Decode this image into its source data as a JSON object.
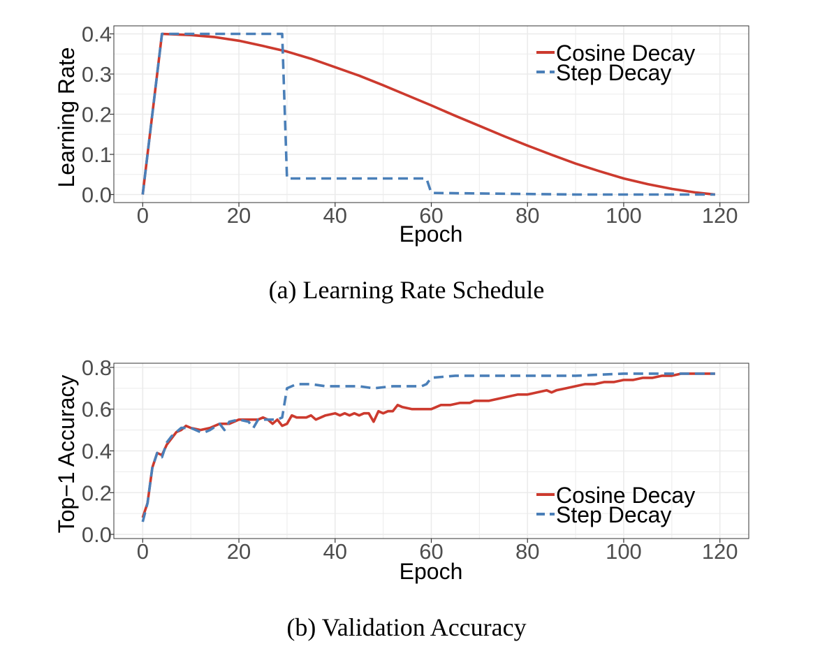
{
  "colors": {
    "cosine": "#cc3a2e",
    "step": "#4a7fb8",
    "grid": "#ebebeb",
    "panel_border": "#333333"
  },
  "chart_data": [
    {
      "id": "lr",
      "type": "line",
      "caption": "(a) Learning Rate Schedule",
      "xlabel": "Epoch",
      "ylabel": "Learning Rate",
      "xlim": [
        -6,
        126
      ],
      "ylim": [
        -0.02,
        0.42
      ],
      "xticks": [
        0,
        20,
        40,
        60,
        80,
        100,
        120
      ],
      "yticks": [
        0.0,
        0.1,
        0.2,
        0.3,
        0.4
      ],
      "ytick_labels": [
        "0.0",
        "0.1",
        "0.2",
        "0.3",
        "0.4"
      ],
      "legend_position": "top-right",
      "series": [
        {
          "name": "Cosine Decay",
          "style": "solid",
          "x": [
            0,
            4,
            10,
            15,
            20,
            25,
            30,
            35,
            40,
            45,
            50,
            55,
            60,
            65,
            70,
            75,
            80,
            85,
            90,
            95,
            100,
            105,
            110,
            115,
            119
          ],
          "y": [
            0.0,
            0.4,
            0.397,
            0.392,
            0.383,
            0.37,
            0.356,
            0.338,
            0.317,
            0.296,
            0.272,
            0.247,
            0.222,
            0.196,
            0.171,
            0.146,
            0.122,
            0.099,
            0.077,
            0.058,
            0.04,
            0.026,
            0.014,
            0.005,
            0.0
          ]
        },
        {
          "name": "Step Decay",
          "style": "dashed",
          "x": [
            0,
            4,
            29,
            30,
            59,
            60,
            90,
            119
          ],
          "y": [
            0.0,
            0.4,
            0.4,
            0.04,
            0.04,
            0.004,
            0.0,
            0.0
          ]
        }
      ]
    },
    {
      "id": "acc",
      "type": "line",
      "caption": "(b) Validation Accuracy",
      "xlabel": "Epoch",
      "ylabel": "Top−1 Accuracy",
      "xlim": [
        -6,
        126
      ],
      "ylim": [
        -0.02,
        0.82
      ],
      "xticks": [
        0,
        20,
        40,
        60,
        80,
        100,
        120
      ],
      "yticks": [
        0.0,
        0.2,
        0.4,
        0.6,
        0.8
      ],
      "ytick_labels": [
        "0.0",
        "0.2",
        "0.4",
        "0.6",
        "0.8"
      ],
      "legend_position": "bottom-right",
      "series": [
        {
          "name": "Cosine Decay",
          "style": "solid",
          "x": [
            0,
            1,
            2,
            3,
            4,
            5,
            6,
            7,
            8,
            9,
            10,
            12,
            14,
            15,
            16,
            18,
            20,
            22,
            24,
            25,
            26,
            27,
            28,
            29,
            30,
            31,
            32,
            34,
            35,
            36,
            38,
            40,
            41,
            42,
            43,
            44,
            45,
            46,
            47,
            48,
            49,
            50,
            51,
            52,
            53,
            54,
            56,
            58,
            60,
            62,
            64,
            66,
            68,
            69,
            70,
            72,
            74,
            76,
            78,
            80,
            82,
            84,
            85,
            86,
            88,
            90,
            92,
            94,
            96,
            98,
            100,
            102,
            104,
            106,
            108,
            110,
            112,
            114,
            116,
            119
          ],
          "y": [
            0.08,
            0.15,
            0.32,
            0.39,
            0.38,
            0.43,
            0.46,
            0.49,
            0.5,
            0.52,
            0.51,
            0.5,
            0.51,
            0.52,
            0.53,
            0.53,
            0.55,
            0.55,
            0.55,
            0.56,
            0.55,
            0.53,
            0.55,
            0.52,
            0.53,
            0.57,
            0.56,
            0.56,
            0.57,
            0.55,
            0.57,
            0.58,
            0.57,
            0.58,
            0.57,
            0.58,
            0.57,
            0.58,
            0.58,
            0.54,
            0.59,
            0.58,
            0.59,
            0.59,
            0.62,
            0.61,
            0.6,
            0.6,
            0.6,
            0.62,
            0.62,
            0.63,
            0.63,
            0.64,
            0.64,
            0.64,
            0.65,
            0.66,
            0.67,
            0.67,
            0.68,
            0.69,
            0.68,
            0.69,
            0.7,
            0.71,
            0.72,
            0.72,
            0.73,
            0.73,
            0.74,
            0.74,
            0.75,
            0.75,
            0.76,
            0.76,
            0.77,
            0.77,
            0.77,
            0.77
          ]
        },
        {
          "name": "Step Decay",
          "style": "dashed",
          "x": [
            0,
            1,
            2,
            3,
            4,
            5,
            6,
            7,
            8,
            10,
            12,
            13,
            14,
            16,
            17,
            18,
            20,
            22,
            23,
            24,
            26,
            28,
            29,
            30,
            32,
            35,
            38,
            40,
            45,
            48,
            52,
            55,
            58,
            59,
            60,
            65,
            70,
            80,
            90,
            100,
            110,
            119
          ],
          "y": [
            0.06,
            0.15,
            0.32,
            0.39,
            0.37,
            0.44,
            0.47,
            0.49,
            0.51,
            0.51,
            0.49,
            0.49,
            0.5,
            0.53,
            0.5,
            0.54,
            0.55,
            0.54,
            0.51,
            0.55,
            0.55,
            0.55,
            0.56,
            0.7,
            0.72,
            0.72,
            0.71,
            0.71,
            0.71,
            0.7,
            0.71,
            0.71,
            0.71,
            0.72,
            0.75,
            0.76,
            0.76,
            0.76,
            0.76,
            0.77,
            0.77,
            0.77
          ]
        }
      ]
    }
  ]
}
